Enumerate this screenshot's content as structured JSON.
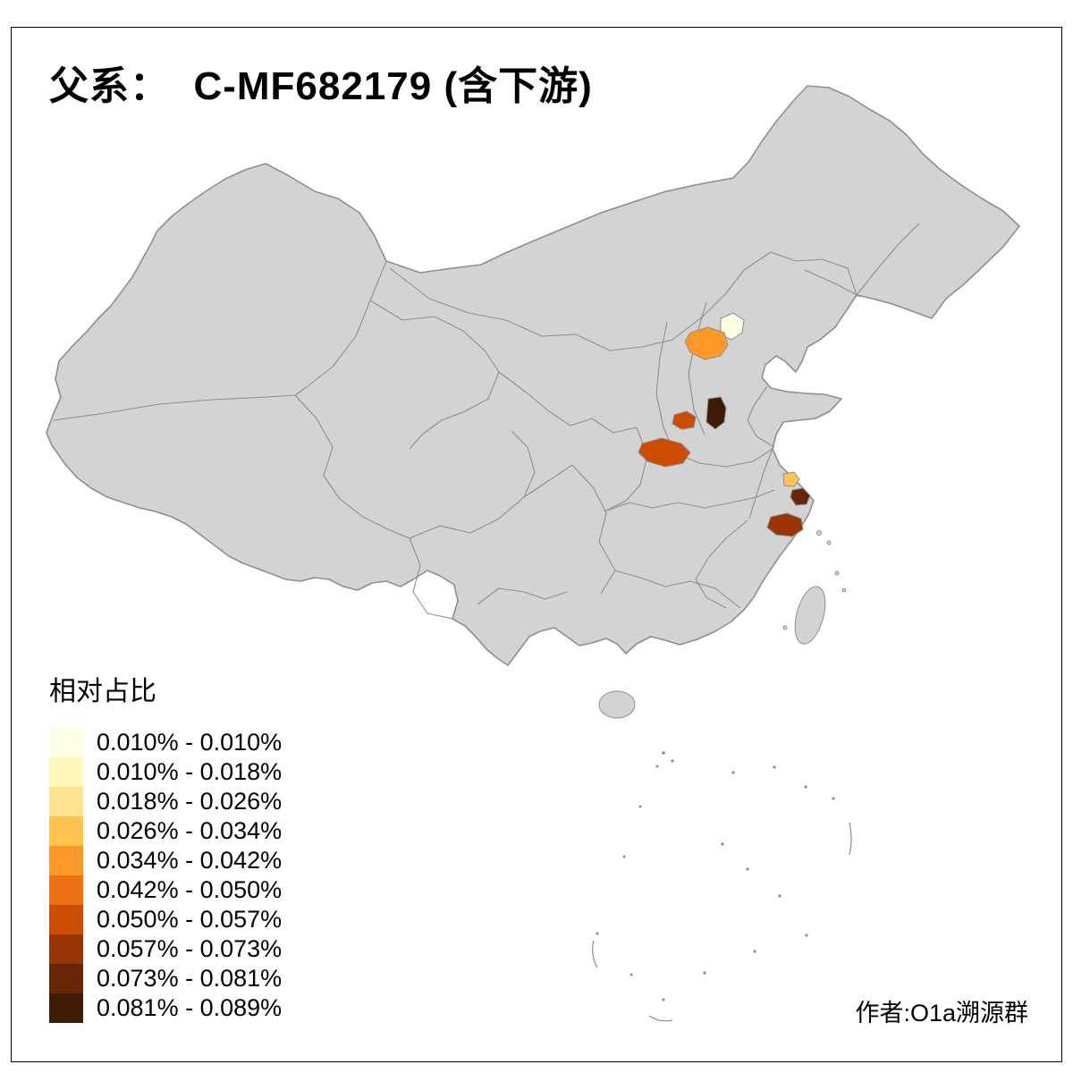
{
  "title": "父系：  C-MF682179 (含下游)",
  "legend": {
    "title": "相对占比",
    "items": [
      {
        "label": "0.010% - 0.010%",
        "color": "#FFFFE5"
      },
      {
        "label": "0.010% - 0.018%",
        "color": "#FFF7BC"
      },
      {
        "label": "0.018% - 0.026%",
        "color": "#FEE391"
      },
      {
        "label": "0.026% - 0.034%",
        "color": "#FEC44F"
      },
      {
        "label": "0.034% - 0.042%",
        "color": "#FE9929"
      },
      {
        "label": "0.042% - 0.050%",
        "color": "#EC7014"
      },
      {
        "label": "0.050% - 0.057%",
        "color": "#CC4C02"
      },
      {
        "label": "0.057% - 0.073%",
        "color": "#993404"
      },
      {
        "label": "0.073% - 0.081%",
        "color": "#662506"
      },
      {
        "label": "0.081% - 0.089%",
        "color": "#3F1A05"
      }
    ]
  },
  "author": "作者:O1a溯源群",
  "map": {
    "base_fill": "#D3D3D3",
    "border_color": "#8E8E8E",
    "background": "#FFFFFF",
    "highlights": [
      {
        "id": "highlight-region-1",
        "color": "#FFFFE5"
      },
      {
        "id": "highlight-region-2",
        "color": "#FE9929"
      },
      {
        "id": "highlight-region-3",
        "color": "#CC4C02"
      },
      {
        "id": "highlight-region-4",
        "color": "#3F1A05"
      },
      {
        "id": "highlight-region-5",
        "color": "#CC4C02"
      },
      {
        "id": "highlight-region-6",
        "color": "#FEC44F"
      },
      {
        "id": "highlight-region-7",
        "color": "#662506"
      },
      {
        "id": "highlight-region-8",
        "color": "#993404"
      }
    ]
  }
}
